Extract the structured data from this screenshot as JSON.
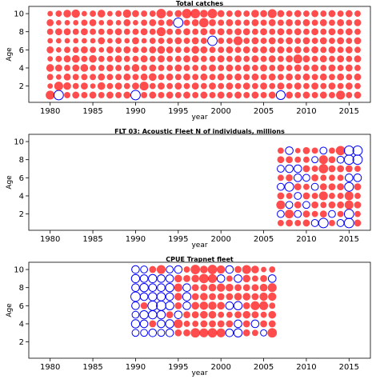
{
  "chart_data": [
    {
      "type": "scatter",
      "title": "Total catches",
      "xlabel": "year",
      "ylabel": "Age",
      "xlim": [
        1977.5,
        2017.5
      ],
      "ylim": [
        0.2,
        10.8
      ],
      "xticks": [
        1980,
        1985,
        1990,
        1995,
        2000,
        2005,
        2010,
        2015
      ],
      "yticks": [
        2,
        4,
        6,
        8,
        10
      ],
      "grid": false,
      "years": [
        1980,
        1981,
        1982,
        1983,
        1984,
        1985,
        1986,
        1987,
        1988,
        1989,
        1990,
        1991,
        1992,
        1993,
        1994,
        1995,
        1996,
        1997,
        1998,
        1999,
        2000,
        2001,
        2002,
        2003,
        2004,
        2005,
        2006,
        2007,
        2008,
        2009,
        2010,
        2011,
        2012,
        2013,
        2014,
        2015,
        2016
      ],
      "ages": [
        1,
        2,
        3,
        4,
        5,
        6,
        7,
        8,
        9,
        10
      ],
      "residuals": [
        [
          0.8,
          0.3,
          0.4,
          0.6,
          0.3,
          0.5,
          0.3,
          0.4,
          0.5,
          0.3
        ],
        [
          -0.9,
          0.8,
          0.3,
          0.5,
          0.4,
          0.3,
          0.3,
          0.5,
          0.3,
          0.4
        ],
        [
          0.4,
          0.6,
          0.5,
          0.4,
          0.5,
          0.4,
          0.3,
          0.5,
          0.3,
          0.6
        ],
        [
          0.5,
          0.4,
          0.4,
          0.5,
          0.6,
          0.4,
          0.3,
          0.4,
          0.3,
          0.7
        ],
        [
          0.4,
          0.5,
          0.4,
          0.6,
          0.4,
          0.5,
          0.3,
          0.5,
          0.4,
          0.3
        ],
        [
          0.5,
          0.3,
          0.4,
          0.4,
          0.6,
          0.4,
          0.3,
          0.4,
          0.5,
          0.4
        ],
        [
          0.4,
          0.6,
          0.5,
          0.4,
          0.4,
          0.3,
          0.5,
          0.4,
          0.3,
          0.6
        ],
        [
          0.5,
          0.4,
          0.4,
          0.5,
          0.4,
          0.5,
          0.3,
          0.4,
          0.4,
          0.3
        ],
        [
          0.4,
          0.5,
          0.4,
          0.4,
          0.5,
          0.4,
          0.4,
          0.5,
          0.3,
          0.4
        ],
        [
          0.5,
          0.4,
          0.5,
          0.4,
          0.4,
          0.5,
          0.3,
          0.4,
          0.5,
          0.7
        ],
        [
          -0.9,
          0.5,
          0.4,
          0.6,
          0.4,
          0.4,
          0.5,
          0.4,
          0.3,
          0.5
        ],
        [
          0.4,
          0.8,
          0.5,
          0.4,
          0.5,
          0.4,
          0.3,
          0.5,
          0.4,
          0.4
        ],
        [
          0.5,
          0.4,
          0.6,
          0.5,
          0.4,
          0.5,
          0.4,
          0.4,
          0.5,
          0.4
        ],
        [
          0.4,
          0.5,
          0.4,
          0.4,
          0.5,
          0.6,
          0.4,
          0.8,
          0.4,
          0.9
        ],
        [
          0.5,
          0.4,
          0.5,
          0.4,
          0.4,
          0.5,
          0.4,
          0.4,
          0.5,
          0.4
        ],
        [
          0.4,
          0.5,
          0.4,
          0.5,
          0.4,
          0.4,
          0.5,
          0.4,
          -0.9,
          0.5
        ],
        [
          0.5,
          0.4,
          0.5,
          0.4,
          0.5,
          0.4,
          0.4,
          0.5,
          0.4,
          0.9
        ],
        [
          0.4,
          0.5,
          0.4,
          0.4,
          0.5,
          0.6,
          0.5,
          0.4,
          0.5,
          0.9
        ],
        [
          0.5,
          0.4,
          0.5,
          0.4,
          0.4,
          0.5,
          0.4,
          0.5,
          0.9,
          0.6
        ],
        [
          0.4,
          0.5,
          0.4,
          0.5,
          0.4,
          0.4,
          -0.9,
          0.4,
          0.5,
          0.9
        ],
        [
          0.5,
          0.4,
          0.5,
          0.4,
          0.5,
          0.4,
          0.4,
          0.5,
          0.4,
          0.5
        ],
        [
          0.4,
          0.5,
          0.4,
          0.5,
          0.4,
          0.5,
          0.4,
          0.4,
          0.5,
          0.4
        ],
        [
          0.5,
          0.4,
          0.5,
          0.4,
          0.5,
          0.4,
          0.8,
          0.5,
          0.4,
          0.5
        ],
        [
          0.4,
          0.5,
          0.4,
          0.5,
          0.4,
          0.5,
          0.4,
          0.5,
          0.4,
          0.4
        ],
        [
          0.5,
          0.4,
          0.5,
          0.4,
          0.5,
          0.4,
          0.5,
          0.4,
          0.5,
          0.6
        ],
        [
          0.4,
          0.5,
          0.4,
          0.5,
          0.4,
          0.5,
          0.4,
          0.5,
          0.4,
          0.5
        ],
        [
          0.5,
          0.4,
          0.5,
          0.4,
          0.5,
          0.4,
          0.5,
          0.4,
          0.5,
          0.8
        ],
        [
          -0.8,
          0.5,
          0.4,
          0.5,
          0.4,
          0.5,
          0.4,
          0.5,
          0.4,
          0.5
        ],
        [
          0.5,
          0.4,
          0.5,
          0.4,
          0.5,
          0.4,
          0.5,
          0.4,
          0.5,
          0.4
        ],
        [
          0.4,
          0.5,
          0.4,
          0.5,
          0.8,
          0.5,
          0.4,
          0.5,
          0.4,
          0.5
        ],
        [
          0.5,
          0.4,
          0.5,
          0.4,
          0.5,
          0.4,
          0.5,
          0.4,
          0.5,
          0.4
        ],
        [
          0.4,
          0.5,
          0.4,
          0.5,
          0.4,
          0.5,
          0.4,
          0.5,
          0.4,
          0.5
        ],
        [
          0.5,
          0.4,
          0.5,
          0.4,
          0.5,
          0.4,
          0.5,
          0.4,
          0.5,
          0.4
        ],
        [
          0.4,
          0.5,
          0.4,
          0.5,
          0.4,
          0.5,
          0.4,
          0.5,
          0.4,
          0.5
        ],
        [
          0.8,
          0.4,
          0.5,
          0.4,
          0.5,
          0.4,
          0.5,
          0.4,
          0.5,
          0.4
        ],
        [
          0.4,
          0.5,
          0.4,
          0.5,
          0.4,
          0.5,
          0.4,
          0.5,
          0.4,
          0.5
        ],
        [
          0.5,
          0.4,
          0.5,
          0.4,
          0.5,
          0.4,
          0.5,
          0.4,
          0.5,
          0.4
        ]
      ]
    },
    {
      "type": "scatter",
      "title": "FLT 03: Acoustic Fleet   N of individuals, millions",
      "xlabel": "year",
      "ylabel": "Age",
      "xlim": [
        1977.5,
        2017.5
      ],
      "ylim": [
        0.2,
        10.8
      ],
      "xticks": [
        1980,
        1985,
        1990,
        1995,
        2000,
        2005,
        2010,
        2015
      ],
      "yticks": [
        2,
        4,
        6,
        8,
        10
      ],
      "grid": false,
      "years": [
        2007,
        2008,
        2009,
        2010,
        2011,
        2012,
        2013,
        2014,
        2015,
        2016
      ],
      "ages": [
        1,
        2,
        3,
        4,
        5,
        6,
        7,
        8,
        9
      ],
      "residuals": [
        [
          0.4,
          -0.5,
          0.8,
          0.5,
          -0.5,
          0.4,
          -0.5,
          0.5,
          0.4
        ],
        [
          0.5,
          0.8,
          -0.5,
          0.4,
          -0.8,
          0.5,
          -0.6,
          0.5,
          -0.6
        ],
        [
          0.4,
          -0.5,
          0.5,
          -0.5,
          0.5,
          -0.6,
          -0.6,
          0.4,
          0.3
        ],
        [
          0.5,
          0.5,
          -0.5,
          0.5,
          0.4,
          -0.5,
          0.5,
          0.4,
          0.5
        ],
        [
          -0.5,
          0.4,
          0.5,
          0.4,
          -0.5,
          0.5,
          0.4,
          -0.4,
          0.4
        ],
        [
          -0.9,
          0.5,
          0.4,
          0.8,
          0.5,
          0.4,
          0.9,
          0.8,
          -0.5
        ],
        [
          0.4,
          -0.5,
          0.5,
          0.4,
          0.5,
          0.4,
          0.5,
          0.5,
          0.4
        ],
        [
          -0.5,
          0.4,
          0.5,
          0.4,
          0.5,
          0.4,
          0.5,
          -0.5,
          0.9
        ],
        [
          -0.9,
          -0.9,
          0.8,
          0.8,
          -0.8,
          -0.6,
          0.5,
          -0.9,
          -0.9
        ],
        [
          0.5,
          0.4,
          0.5,
          0.4,
          0.5,
          -0.6,
          0.4,
          -0.9,
          -0.9
        ]
      ]
    },
    {
      "type": "scatter",
      "title": "CPUE Trapnet fleet",
      "xlabel": "year",
      "ylabel": "Age",
      "xlim": [
        1977.5,
        2017.5
      ],
      "ylim": [
        0.2,
        10.8
      ],
      "xticks": [
        1980,
        1985,
        1990,
        1995,
        2000,
        2005,
        2010,
        2015
      ],
      "yticks": [
        2,
        4,
        6,
        8,
        10
      ],
      "grid": false,
      "years": [
        1990,
        1991,
        1992,
        1993,
        1994,
        1995,
        1996,
        1997,
        1998,
        1999,
        2000,
        2001,
        2002,
        2003,
        2004,
        2005,
        2006
      ],
      "ages": [
        3,
        4,
        5,
        6,
        7,
        8,
        9,
        10
      ],
      "residuals": [
        [
          -0.5,
          -0.7,
          -0.5,
          -0.6,
          -0.9,
          -0.6,
          -0.7,
          -0.6
        ],
        [
          -0.5,
          -0.6,
          -0.7,
          0.5,
          -0.6,
          -0.7,
          -0.6,
          -0.5
        ],
        [
          -0.6,
          0.5,
          -0.7,
          -0.9,
          -0.7,
          -0.6,
          -0.7,
          0.5
        ],
        [
          -0.5,
          -0.6,
          -0.7,
          -0.9,
          -0.7,
          -0.6,
          -0.6,
          0.8
        ],
        [
          -0.6,
          -0.7,
          0.5,
          -0.7,
          -0.6,
          -0.7,
          -0.6,
          -0.5
        ],
        [
          0.5,
          0.8,
          -0.6,
          0.5,
          0.6,
          0.7,
          0.6,
          -0.6
        ],
        [
          0.5,
          0.4,
          0.5,
          -0.6,
          -0.7,
          -0.6,
          0.5,
          0.4
        ],
        [
          0.9,
          0.4,
          0.5,
          0.6,
          0.5,
          0.5,
          0.6,
          0.9
        ],
        [
          0.8,
          0.5,
          0.6,
          0.7,
          0.6,
          0.5,
          0.9,
          0.6
        ],
        [
          0.9,
          0.5,
          0.6,
          0.7,
          0.5,
          0.6,
          0.8,
          0.9
        ],
        [
          0.8,
          0.5,
          0.4,
          0.6,
          0.5,
          0.7,
          -0.6,
          0.7
        ],
        [
          -0.6,
          0.5,
          0.4,
          -0.6,
          0.5,
          0.6,
          0.4,
          -0.6
        ],
        [
          -0.7,
          -0.6,
          0.5,
          -0.7,
          0.6,
          0.5,
          -0.6,
          0.5
        ],
        [
          0.5,
          0.5,
          0.6,
          0.5,
          0.6,
          0.5,
          0.6,
          0.8
        ],
        [
          0.4,
          -0.6,
          0.5,
          0.8,
          0.5,
          0.5,
          0.4,
          0.6
        ],
        [
          -0.4,
          0.5,
          0.4,
          0.8,
          0.7,
          0.6,
          0.5,
          0.3
        ],
        [
          0.9,
          0.5,
          0.6,
          0.4,
          0.7,
          0.8,
          -0.6,
          0.4
        ]
      ]
    }
  ]
}
